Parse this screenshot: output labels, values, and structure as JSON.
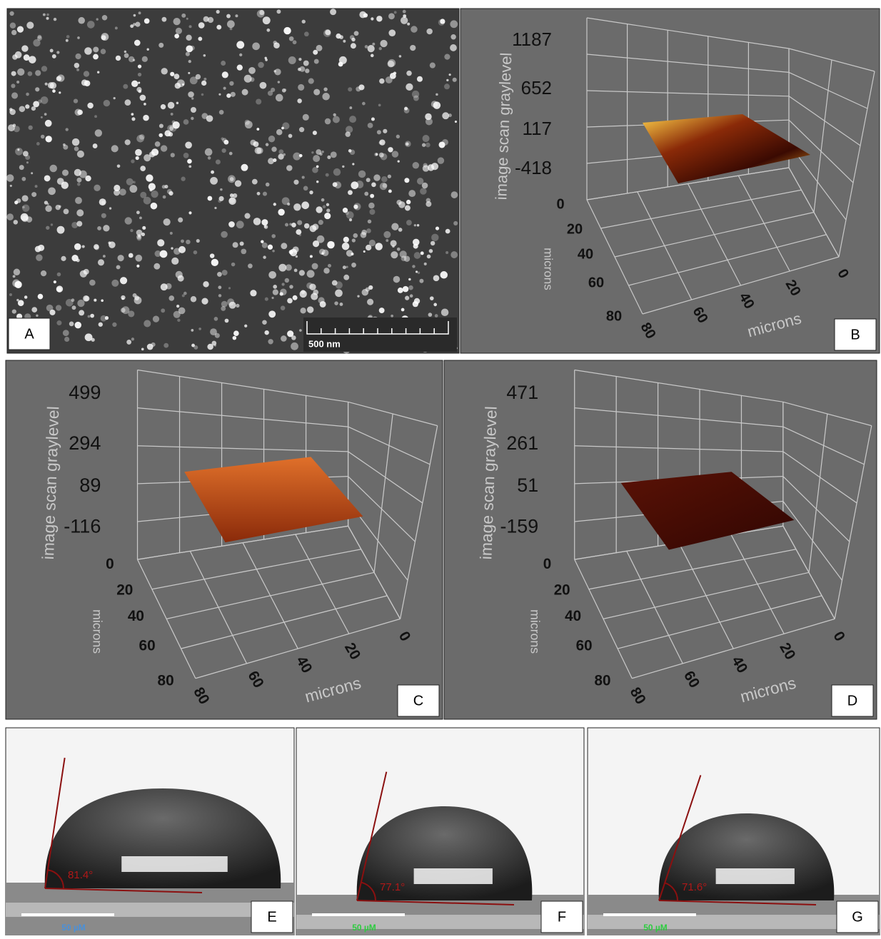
{
  "panels": [
    {
      "label": "A",
      "scale_bar": "500 nm"
    },
    {
      "label": "B",
      "z_axis_title": "image scan graylevel",
      "z_ticks": [
        "1187",
        "652",
        "117",
        "-418"
      ],
      "y_axis_title": "microns",
      "y_ticks": [
        "0",
        "20",
        "40",
        "60",
        "80"
      ],
      "x_axis_title": "microns",
      "x_ticks": [
        "80",
        "60",
        "40",
        "20",
        "0"
      ]
    },
    {
      "label": "C",
      "z_axis_title": "image scan graylevel",
      "z_ticks": [
        "499",
        "294",
        "89",
        "-116"
      ],
      "y_axis_title": "microns",
      "y_ticks": [
        "0",
        "20",
        "40",
        "60",
        "80"
      ],
      "x_axis_title": "microns",
      "x_ticks": [
        "80",
        "60",
        "40",
        "20",
        "0"
      ]
    },
    {
      "label": "D",
      "z_axis_title": "image scan graylevel",
      "z_ticks": [
        "471",
        "261",
        "51",
        "-159"
      ],
      "y_axis_title": "microns",
      "y_ticks": [
        "0",
        "20",
        "40",
        "60",
        "80"
      ],
      "x_axis_title": "microns",
      "x_ticks": [
        "80",
        "60",
        "40",
        "20",
        "0"
      ]
    },
    {
      "label": "E",
      "angle": "81.4°",
      "scale_bar": "50 µM"
    },
    {
      "label": "F",
      "angle": "77.1°",
      "scale_bar": "50 µM"
    },
    {
      "label": "G",
      "angle": "71.6°",
      "scale_bar": "50 µM"
    }
  ]
}
